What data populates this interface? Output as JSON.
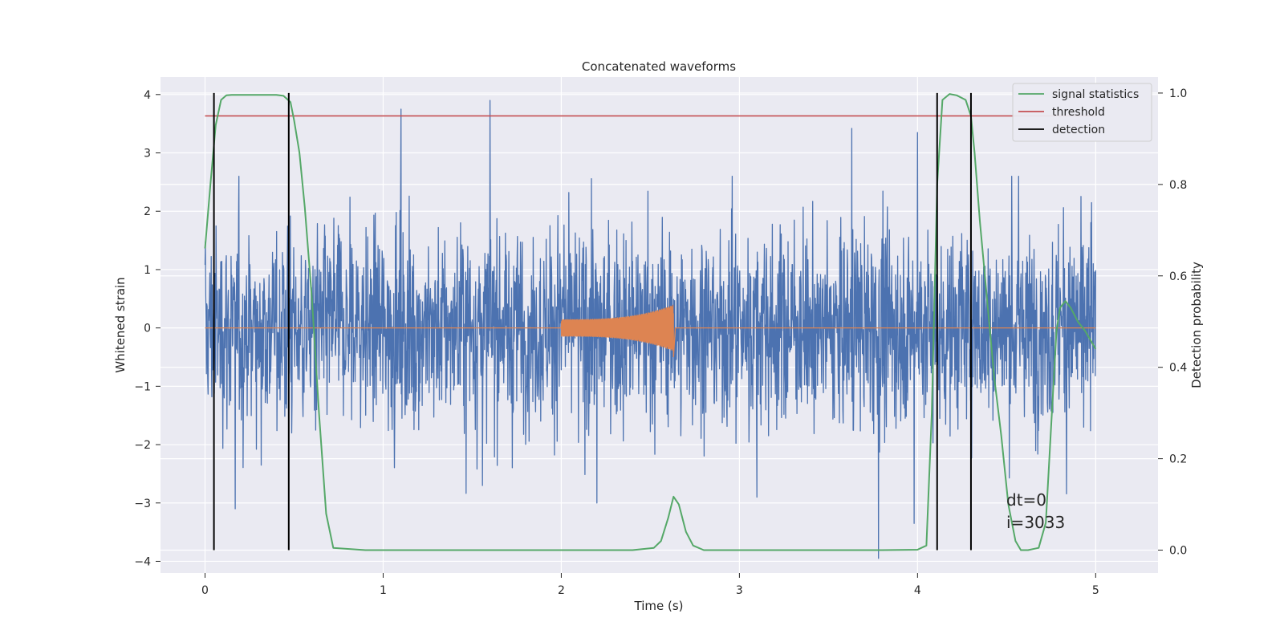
{
  "chart_data": {
    "type": "line",
    "title": "Concatenated waveforms",
    "xlabel": "Time (s)",
    "ylabel": "Whitened strain",
    "ylabel_right": "Detection probability",
    "xlim": [
      -0.25,
      5.35
    ],
    "ylim": [
      -4.2,
      4.3
    ],
    "ylim_right": [
      -0.05,
      1.035
    ],
    "xticks": [
      "0",
      "1",
      "2",
      "3",
      "4",
      "5"
    ],
    "yticks": [
      "−4",
      "−3",
      "−2",
      "−1",
      "0",
      "1",
      "2",
      "3",
      "4"
    ],
    "yticks_right": [
      "0.0",
      "0.2",
      "0.4",
      "0.6",
      "0.8",
      "1.0"
    ],
    "grid": true,
    "legend_position": "top-right",
    "colors": {
      "strain": "#4c72b0",
      "injection": "#dd8452",
      "signal_statistics": "#55a868",
      "threshold": "#c44e52",
      "detection": "#000000",
      "background": "#eaeaf2"
    },
    "legend": [
      {
        "label": "signal statistics",
        "color": "#55a868"
      },
      {
        "label": "threshold",
        "color": "#c44e52"
      },
      {
        "label": "detection",
        "color": "#000000"
      }
    ],
    "series": [
      {
        "axis": "right",
        "x": [
          0.0,
          0.03,
          0.06,
          0.09,
          0.12,
          0.15,
          0.3,
          0.4,
          0.44,
          0.48,
          0.5,
          0.53,
          0.56,
          0.6,
          0.64,
          0.68,
          0.72,
          0.9,
          1.5,
          2.0,
          2.4,
          2.52,
          2.56,
          2.6,
          2.63,
          2.66,
          2.7,
          2.74,
          2.8,
          3.0,
          3.5,
          3.8,
          4.0,
          4.05,
          4.08,
          4.11,
          4.14,
          4.18,
          4.22,
          4.27,
          4.3,
          4.32,
          4.35,
          4.39,
          4.43,
          4.47,
          4.51,
          4.55,
          4.58,
          4.62,
          4.68,
          4.72,
          4.75,
          4.78,
          4.8,
          4.83,
          4.86,
          4.9,
          4.94,
          4.97,
          5.0
        ],
        "values": [
          0.66,
          0.8,
          0.93,
          0.985,
          0.995,
          0.996,
          0.996,
          0.996,
          0.994,
          0.98,
          0.94,
          0.87,
          0.75,
          0.55,
          0.3,
          0.08,
          0.005,
          0.0,
          0.0,
          0.0,
          0.0,
          0.005,
          0.02,
          0.07,
          0.117,
          0.1,
          0.04,
          0.01,
          0.0,
          0.0,
          0.0,
          0.0,
          0.001,
          0.01,
          0.3,
          0.8,
          0.985,
          0.998,
          0.995,
          0.985,
          0.95,
          0.87,
          0.72,
          0.55,
          0.38,
          0.25,
          0.1,
          0.02,
          0.0,
          0.0,
          0.005,
          0.06,
          0.27,
          0.48,
          0.53,
          0.545,
          0.53,
          0.5,
          0.48,
          0.46,
          0.44
        ]
      },
      {
        "axis": "right",
        "x": [
          0.0,
          5.0
        ],
        "values": [
          0.95,
          0.95
        ]
      }
    ],
    "detections": [
      0.05,
      0.47,
      4.11,
      4.3
    ],
    "injection": {
      "start": 2.0,
      "end": 2.63,
      "amp_start": 0.15,
      "amp_end": 0.4
    },
    "strain_spikes": [
      {
        "x": 1.1,
        "y": 3.75
      },
      {
        "x": 1.6,
        "y": 3.9
      },
      {
        "x": 3.63,
        "y": 3.42
      },
      {
        "x": 4.0,
        "y": 3.35
      },
      {
        "x": 3.78,
        "y": -3.95
      },
      {
        "x": 0.17,
        "y": -3.1
      },
      {
        "x": 2.2,
        "y": -3.0
      },
      {
        "x": 3.98,
        "y": -3.35
      }
    ],
    "annotations": [
      "dt=0",
      "i=3033"
    ]
  }
}
